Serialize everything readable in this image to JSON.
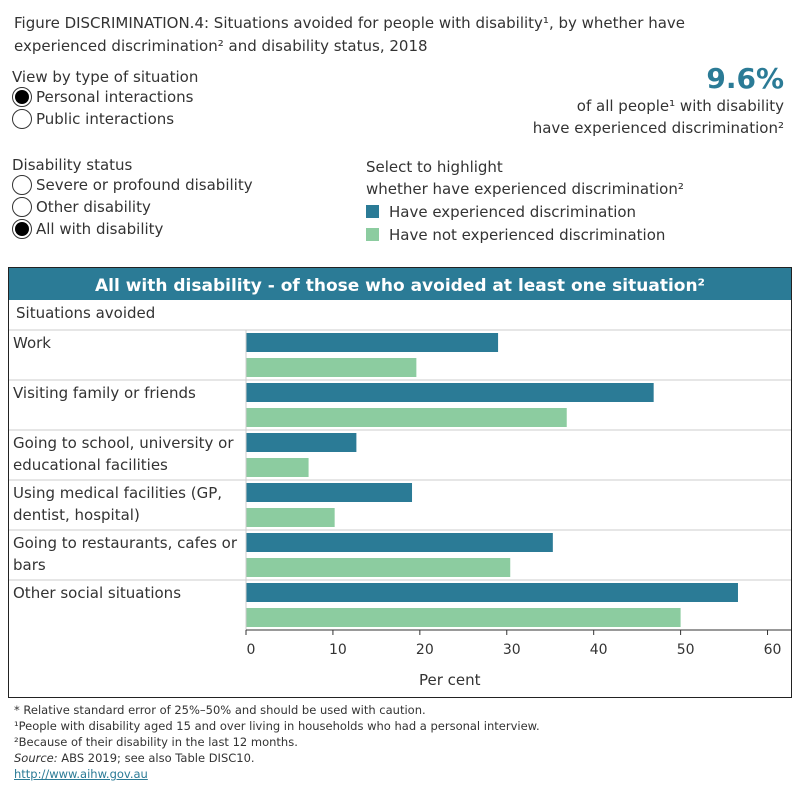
{
  "figure_title": "Figure DISCRIMINATION.4: Situations avoided for people with disability¹, by whether have experienced discrimination² and disability status, 2018",
  "view_by": {
    "label": "View by type of situation",
    "options": [
      "Personal interactions",
      "Public interactions"
    ],
    "selected": 0
  },
  "disability_status": {
    "label": "Disability status",
    "options": [
      "Severe or profound disability",
      "Other disability",
      "All with disability"
    ],
    "selected": 2
  },
  "kpi": {
    "value": "9.6%",
    "line1": "of all people¹ with disability",
    "line2": "have experienced discrimination²"
  },
  "legend": {
    "title1": "Select to highlight",
    "title2": "whether have experienced discrimination²",
    "items": [
      {
        "label": "Have experienced discrimination",
        "color": "#2b7b96"
      },
      {
        "label": "Have not experienced discrimination",
        "color": "#8ccca0"
      }
    ]
  },
  "chart_data": {
    "type": "bar",
    "orientation": "horizontal",
    "title": "All with disability - of those who avoided at least one situation²",
    "row_header": "Situations avoided",
    "categories": [
      "Work",
      "Visiting family or friends",
      "Going to school, university or educational facilities",
      "Using medical facilities (GP, dentist, hospital)",
      "Going to restaurants, cafes or bars",
      "Other social situations"
    ],
    "series": [
      {
        "name": "Have experienced discrimination",
        "color": "#2b7b96",
        "values": [
          29.0,
          46.9,
          12.7,
          19.1,
          35.3,
          56.6
        ]
      },
      {
        "name": "Have not experienced discrimination",
        "color": "#8ccca0",
        "values": [
          19.6,
          36.9,
          7.2,
          10.2,
          30.4,
          50.0
        ]
      }
    ],
    "xlabel": "Per cent",
    "xlim": [
      0,
      62.7
    ],
    "xticks": [
      "0",
      "10",
      "20",
      "30",
      "40",
      "50",
      "60"
    ],
    "grid": false
  },
  "footnotes": [
    "* Relative standard error of 25%–50% and should be used with caution.",
    "¹People with disability aged 15 and over living in households who had a personal interview.",
    "²Because of their disability in the last 12 months."
  ],
  "source": {
    "label": "Source:",
    "text": " ABS 2019; see also Table DISC10."
  },
  "link": "http://www.aihw.gov.au"
}
